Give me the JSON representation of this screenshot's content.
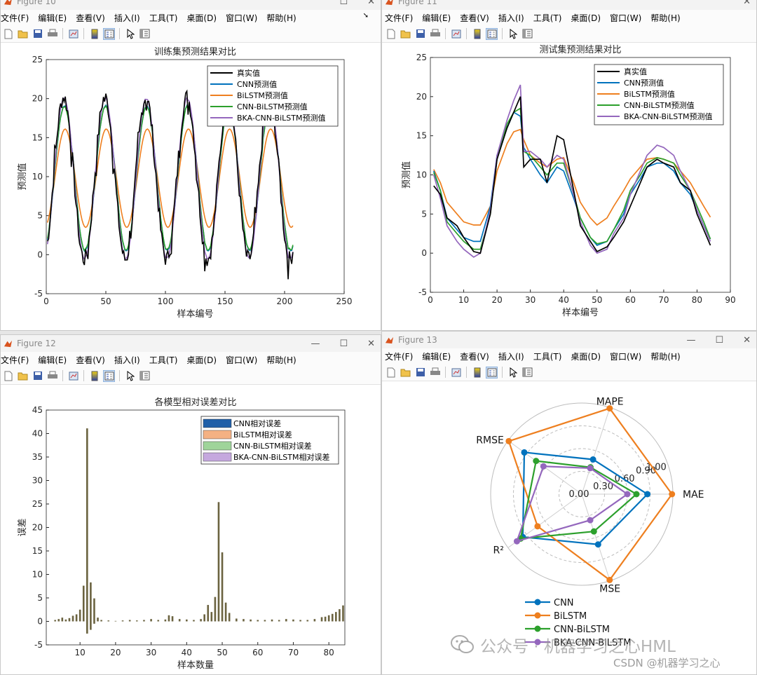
{
  "menu_items": [
    "文件(F)",
    "编辑(E)",
    "查看(V)",
    "插入(I)",
    "工具(T)",
    "桌面(D)",
    "窗口(W)",
    "帮助(H)"
  ],
  "windows": {
    "fig10": {
      "title": "Figure 10"
    },
    "fig11": {
      "title": "Figure 11"
    },
    "fig12": {
      "title": "Figure 12"
    },
    "fig13": {
      "title": "Figure 13"
    }
  },
  "colors": {
    "true": "#000000",
    "cnn": "#0072BD",
    "bilstm": "#EE7F1F",
    "cnnbilstm": "#2CA02C",
    "bka": "#9467BD"
  },
  "watermark": {
    "wechat": "公众号 · 机器学习之心HML",
    "csdn": "CSDN @机器学习之心"
  },
  "chart_data": [
    {
      "type": "line",
      "title": "训练集预测结果对比",
      "xlabel": "样本编号",
      "ylabel": "预测值",
      "xlim": [
        0,
        250
      ],
      "ylim": [
        -5,
        25
      ],
      "xticks": [
        0,
        50,
        100,
        150,
        200,
        250
      ],
      "yticks": [
        -5,
        0,
        5,
        10,
        15,
        20,
        25
      ],
      "legend": [
        "真实值",
        "CNN预测值",
        "BiLSTM预测值",
        "CNN-BiLSTM预测值",
        "BKA-CNN-BiLSTM预测值"
      ],
      "legend_position": "top-right",
      "n_points": 207,
      "series_model": {
        "period": 34.5,
        "phase": 6,
        "mean": 9.8,
        "true_amp": 10.4,
        "cnn_amp": 9.3,
        "bilstm_amp": 6.3,
        "cnnbilstm_amp": 9.2,
        "bka_amp": 10.3
      }
    },
    {
      "type": "line",
      "title": "测试集预测结果对比",
      "xlabel": "样本编号",
      "ylabel": "预测值",
      "xlim": [
        0,
        90
      ],
      "ylim": [
        -5,
        25
      ],
      "xticks": [
        0,
        10,
        20,
        30,
        40,
        50,
        60,
        70,
        80,
        90
      ],
      "yticks": [
        -5,
        0,
        5,
        10,
        15,
        20,
        25
      ],
      "legend": [
        "真实值",
        "CNN预测值",
        "BiLSTM预测值",
        "CNN-BiLSTM预测值",
        "BKA-CNN-BiLSTM预测值"
      ],
      "legend_position": "top-right",
      "x": [
        1,
        3,
        5,
        8,
        10,
        13,
        15,
        18,
        20,
        23,
        25,
        27,
        28,
        30,
        33,
        35,
        38,
        40,
        43,
        45,
        48,
        50,
        53,
        55,
        58,
        60,
        63,
        65,
        68,
        70,
        73,
        75,
        78,
        80,
        82,
        84
      ],
      "series": [
        {
          "name": "真实值",
          "values": [
            8.6,
            7.5,
            4.5,
            3.5,
            2.0,
            0.2,
            0.0,
            5.0,
            12.0,
            16.0,
            18.0,
            20.0,
            11.0,
            12.0,
            12.0,
            9.0,
            15.0,
            14.5,
            8.0,
            3.5,
            1.5,
            0.2,
            0.8,
            2.0,
            4.0,
            6.0,
            9.0,
            11.0,
            12.0,
            11.5,
            11.0,
            9.0,
            8.0,
            5.0,
            3.0,
            1.0
          ]
        },
        {
          "name": "CNN预测值",
          "values": [
            10.5,
            8.0,
            4.5,
            3.0,
            2.0,
            1.5,
            1.5,
            6.0,
            12.5,
            16.0,
            18.0,
            17.5,
            13.5,
            12.0,
            10.0,
            9.0,
            11.0,
            10.5,
            7.0,
            4.5,
            2.0,
            1.0,
            1.5,
            3.0,
            5.0,
            7.5,
            9.5,
            11.0,
            11.5,
            11.5,
            10.5,
            9.0,
            7.5,
            5.5,
            3.5,
            1.8
          ]
        },
        {
          "name": "BiLSTM预测值",
          "values": [
            10.7,
            9.0,
            6.5,
            5.0,
            4.0,
            3.6,
            3.6,
            6.0,
            10.5,
            14.0,
            15.5,
            15.8,
            14.5,
            12.5,
            11.5,
            11.0,
            12.0,
            12.2,
            9.0,
            6.5,
            4.5,
            3.6,
            4.5,
            6.0,
            8.0,
            9.5,
            11.0,
            12.0,
            12.2,
            12.0,
            11.5,
            10.5,
            9.0,
            7.5,
            6.0,
            4.6
          ]
        },
        {
          "name": "CNN-BiLSTM预测值",
          "values": [
            10.3,
            8.0,
            4.0,
            2.5,
            1.5,
            0.5,
            0.5,
            5.0,
            12.0,
            16.5,
            18.0,
            18.5,
            13.0,
            12.5,
            11.0,
            10.0,
            11.5,
            11.5,
            7.5,
            4.5,
            2.0,
            1.2,
            1.5,
            3.0,
            5.5,
            8.0,
            10.0,
            11.5,
            12.2,
            12.0,
            11.5,
            10.0,
            8.0,
            6.0,
            4.0,
            1.8
          ]
        },
        {
          "name": "BKA-CNN-BiLSTM预测值",
          "values": [
            10.0,
            7.0,
            3.5,
            1.5,
            0.5,
            -0.5,
            0.0,
            5.5,
            12.5,
            17.0,
            19.5,
            21.5,
            13.0,
            13.0,
            12.0,
            11.0,
            12.5,
            12.0,
            7.5,
            4.0,
            1.0,
            0.0,
            0.5,
            2.5,
            4.5,
            7.5,
            10.5,
            12.5,
            13.8,
            13.5,
            12.5,
            10.5,
            8.0,
            5.5,
            3.5,
            1.5
          ]
        }
      ]
    },
    {
      "type": "bar",
      "title": "各模型相对误差对比",
      "xlabel": "样本数量",
      "ylabel": "误差",
      "xlim": [
        0.5,
        84.5
      ],
      "ylim": [
        -5,
        45
      ],
      "xticks": [
        10,
        20,
        30,
        40,
        50,
        60,
        70,
        80
      ],
      "yticks": [
        -5,
        0,
        5,
        10,
        15,
        20,
        25,
        30,
        35,
        40,
        45
      ],
      "legend": [
        "CNN相对误差",
        "BiLSTM相对误差",
        "CNN-BiLSTM相对误差",
        "BKA-CNN-BiLSTM相对误差"
      ],
      "legend_position": "top-right",
      "legend_colors": [
        "#1f5fa8",
        "#f4b183",
        "#9fd49a",
        "#c5a8de"
      ],
      "bar_color": "#6b6340",
      "x": [
        3,
        4,
        5,
        6,
        7,
        8,
        9,
        10,
        11,
        12,
        13,
        14,
        15,
        16,
        18,
        20,
        22,
        24,
        26,
        28,
        30,
        32,
        34,
        35,
        36,
        38,
        40,
        42,
        44,
        45,
        46,
        47,
        48,
        49,
        50,
        51,
        52,
        54,
        56,
        58,
        60,
        62,
        64,
        66,
        68,
        70,
        72,
        74,
        76,
        78,
        79,
        80,
        81,
        82,
        83,
        84
      ],
      "values": [
        0.3,
        0.5,
        0.8,
        0.4,
        0.7,
        1.2,
        1.5,
        2.5,
        7.6,
        41.1,
        8.3,
        4.9,
        0.8,
        0.3,
        0.2,
        0.1,
        0.2,
        0.3,
        0.2,
        0.3,
        0.5,
        0.3,
        0.4,
        1.3,
        1.1,
        0.5,
        0.4,
        0.3,
        0.5,
        1.5,
        3.5,
        2.0,
        5.2,
        25.4,
        14.7,
        4.0,
        1.8,
        0.6,
        0.5,
        0.4,
        0.3,
        0.3,
        0.4,
        0.3,
        0.5,
        0.4,
        0.3,
        0.3,
        0.5,
        0.9,
        1.0,
        1.3,
        1.6,
        2.0,
        2.6,
        3.4
      ],
      "negatives": [
        {
          "x": 12,
          "value": -2.6
        },
        {
          "x": 13,
          "value": -1.8
        },
        {
          "x": 14,
          "value": -0.5
        }
      ]
    },
    {
      "type": "radar",
      "axes": [
        "MAE",
        "MAPE",
        "RMSE",
        "R²",
        "MSE"
      ],
      "radial_ticks": [
        "0.00",
        "0.30",
        "0.60",
        "0.90",
        "1.00"
      ],
      "legend_position": "bottom-left",
      "series": [
        {
          "name": "CNN",
          "values": [
            0.72,
            0.4,
            0.78,
            0.8,
            0.58
          ]
        },
        {
          "name": "BiLSTM",
          "values": [
            0.99,
            0.99,
            0.99,
            0.6,
            0.99
          ]
        },
        {
          "name": "CNN-BiLSTM",
          "values": [
            0.6,
            0.31,
            0.62,
            0.83,
            0.43
          ]
        },
        {
          "name": "BKA-CNN-BiLSTM",
          "values": [
            0.5,
            0.3,
            0.52,
            0.88,
            0.3
          ]
        }
      ]
    }
  ]
}
